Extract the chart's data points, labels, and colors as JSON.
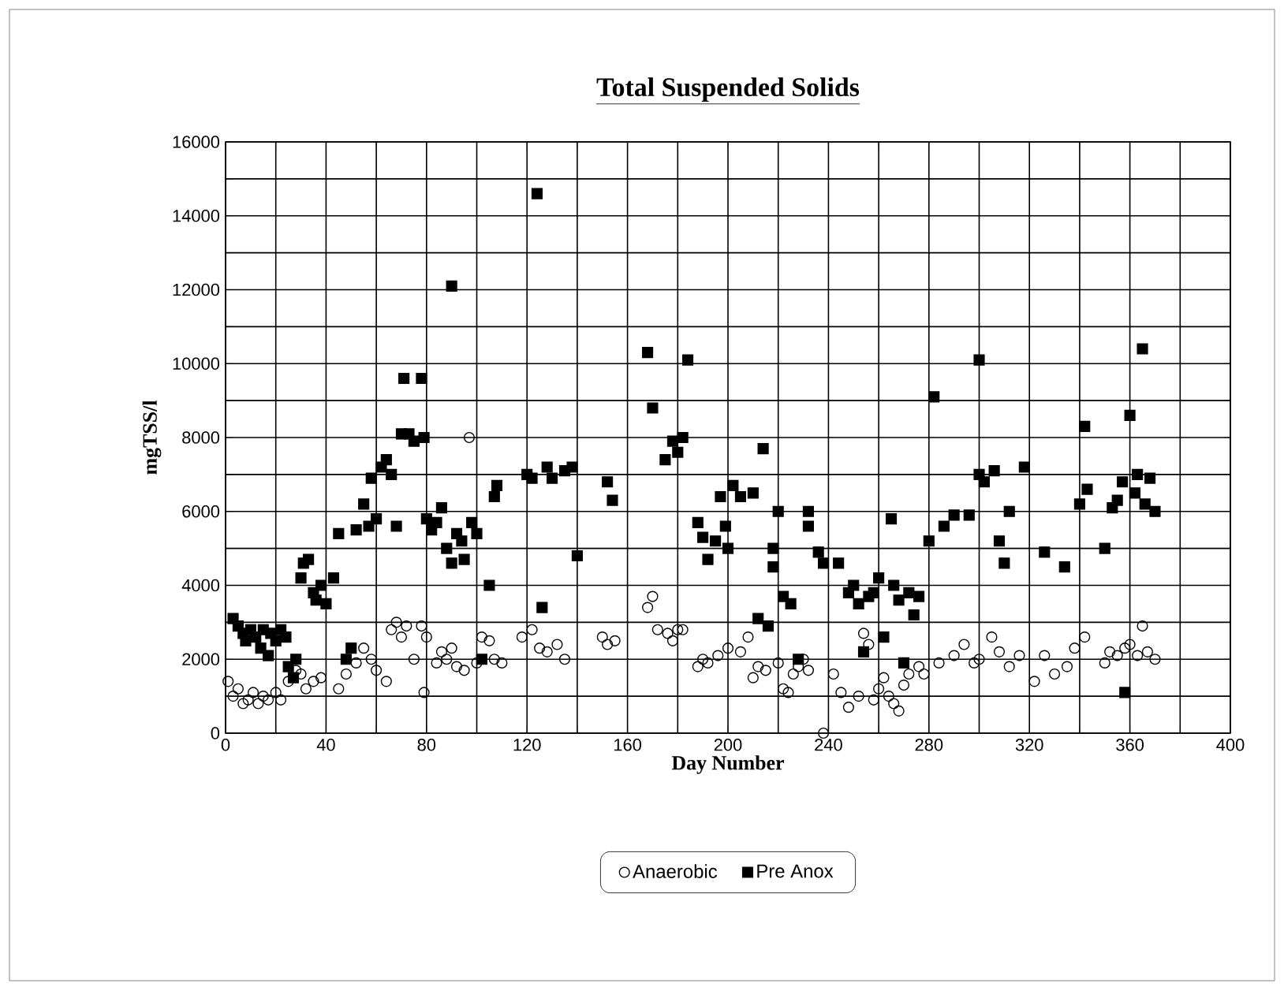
{
  "chart_data": {
    "type": "scatter",
    "title": "Total Suspended Solids",
    "xlabel": "Day Number",
    "ylabel": "mgTSS/l",
    "xlim": [
      0,
      400
    ],
    "ylim": [
      0,
      16000
    ],
    "xticks": [
      0,
      {
        "value": 20,
        "label": null
      },
      40,
      {
        "value": 60,
        "label": null
      },
      80,
      {
        "value": 100,
        "label": null
      },
      120,
      {
        "value": 140,
        "label": null
      },
      160,
      {
        "value": 180,
        "label": null
      },
      200,
      {
        "value": 220,
        "label": null
      },
      240,
      {
        "value": 260,
        "label": null
      },
      280,
      {
        "value": 300,
        "label": null
      },
      320,
      {
        "value": 340,
        "label": null
      },
      360,
      {
        "value": 380,
        "label": null
      },
      400
    ],
    "yticks": [
      0,
      {
        "value": 1000,
        "label": null
      },
      2000,
      {
        "value": 3000,
        "label": null
      },
      4000,
      {
        "value": 5000,
        "label": null
      },
      6000,
      {
        "value": 7000,
        "label": null
      },
      8000,
      {
        "value": 9000,
        "label": null
      },
      10000,
      {
        "value": 11000,
        "label": null
      },
      12000,
      {
        "value": 13000,
        "label": null
      },
      14000,
      {
        "value": 15000,
        "label": null
      },
      16000
    ],
    "grid": true,
    "legend": "bottom",
    "series": [
      {
        "name": "Anaerobic",
        "color": "#000000",
        "marker": "circle",
        "x": [
          1,
          3,
          5,
          7,
          9,
          11,
          13,
          15,
          17,
          20,
          22,
          25,
          28,
          30,
          32,
          35,
          38,
          45,
          48,
          52,
          55,
          58,
          60,
          64,
          66,
          68,
          70,
          72,
          75,
          78,
          79,
          80,
          84,
          86,
          88,
          90,
          92,
          95,
          97,
          100,
          102,
          105,
          107,
          110,
          118,
          122,
          125,
          128,
          132,
          135,
          150,
          152,
          155,
          168,
          170,
          172,
          176,
          178,
          180,
          182,
          188,
          190,
          192,
          196,
          200,
          205,
          208,
          210,
          212,
          215,
          220,
          222,
          224,
          226,
          228,
          230,
          232,
          238,
          242,
          245,
          248,
          252,
          254,
          256,
          258,
          260,
          262,
          264,
          266,
          268,
          270,
          272,
          276,
          278,
          284,
          290,
          294,
          298,
          300,
          305,
          308,
          312,
          316,
          322,
          326,
          330,
          335,
          338,
          342,
          350,
          352,
          355,
          358,
          360,
          363,
          365,
          367,
          370
        ],
        "values": [
          1400,
          1000,
          1200,
          800,
          900,
          1100,
          800,
          1000,
          900,
          1100,
          900,
          1400,
          1700,
          1600,
          1200,
          1400,
          1500,
          1200,
          1600,
          1900,
          2300,
          2000,
          1700,
          1400,
          2800,
          3000,
          2600,
          2900,
          2000,
          2900,
          1100,
          2600,
          1900,
          2200,
          2000,
          2300,
          1800,
          1700,
          8000,
          1900,
          2600,
          2500,
          2000,
          1900,
          2600,
          2800,
          2300,
          2200,
          2400,
          2000,
          2600,
          2400,
          2500,
          3400,
          3700,
          2800,
          2700,
          2500,
          2800,
          2800,
          1800,
          2000,
          1900,
          2100,
          2300,
          2200,
          2600,
          1500,
          1800,
          1700,
          1900,
          1200,
          1100,
          1600,
          1800,
          2000,
          1700,
          0,
          1600,
          1100,
          700,
          1000,
          2700,
          2400,
          900,
          1200,
          1500,
          1000,
          800,
          600,
          1300,
          1600,
          1800,
          1600,
          1900,
          2100,
          2400,
          1900,
          2000,
          2600,
          2200,
          1800,
          2100,
          1400,
          2100,
          1600,
          1800,
          2300,
          2600,
          1900,
          2200,
          2100,
          2300,
          2400,
          2100,
          2900,
          2200,
          2000
        ]
      },
      {
        "name": "Pre Anox",
        "color": "#000000",
        "marker": "square",
        "x": [
          3,
          5,
          7,
          8,
          10,
          12,
          14,
          15,
          17,
          18,
          20,
          22,
          24,
          25,
          27,
          28,
          30,
          31,
          33,
          35,
          36,
          38,
          40,
          43,
          45,
          48,
          50,
          52,
          55,
          57,
          58,
          60,
          62,
          64,
          66,
          68,
          70,
          71,
          73,
          75,
          78,
          79,
          80,
          82,
          84,
          86,
          88,
          90,
          90,
          92,
          94,
          95,
          98,
          100,
          102,
          105,
          107,
          108,
          120,
          122,
          124,
          126,
          128,
          130,
          135,
          138,
          140,
          152,
          154,
          168,
          170,
          175,
          178,
          180,
          182,
          184,
          188,
          190,
          192,
          195,
          197,
          199,
          200,
          202,
          205,
          210,
          212,
          214,
          216,
          218,
          218,
          220,
          222,
          225,
          228,
          232,
          232,
          236,
          238,
          244,
          248,
          250,
          252,
          254,
          256,
          258,
          260,
          262,
          265,
          266,
          268,
          270,
          272,
          274,
          276,
          280,
          282,
          286,
          290,
          296,
          300,
          300,
          302,
          306,
          308,
          310,
          312,
          318,
          326,
          334,
          340,
          342,
          343,
          350,
          353,
          355,
          357,
          358,
          360,
          362,
          363,
          365,
          366,
          368,
          370
        ],
        "values": [
          3100,
          2900,
          2700,
          2500,
          2800,
          2600,
          2300,
          2800,
          2100,
          2700,
          2500,
          2800,
          2600,
          1800,
          1500,
          2000,
          4200,
          4600,
          4700,
          3800,
          3600,
          4000,
          3500,
          4200,
          5400,
          2000,
          2300,
          5500,
          6200,
          5600,
          6900,
          5800,
          7200,
          7400,
          7000,
          5600,
          8100,
          9600,
          8100,
          7900,
          9600,
          8000,
          5800,
          5500,
          5700,
          6100,
          5000,
          4600,
          12100,
          5400,
          5200,
          4700,
          5700,
          5400,
          2000,
          4000,
          6400,
          6700,
          7000,
          6900,
          14600,
          3400,
          7200,
          6900,
          7100,
          7200,
          4800,
          6800,
          6300,
          10300,
          8800,
          7400,
          7900,
          7600,
          8000,
          10100,
          5700,
          5300,
          4700,
          5200,
          6400,
          5600,
          5000,
          6700,
          6400,
          6500,
          3100,
          7700,
          2900,
          4500,
          5000,
          6000,
          3700,
          3500,
          2000,
          5600,
          6000,
          4900,
          4600,
          4600,
          3800,
          4000,
          3500,
          2200,
          3700,
          3800,
          4200,
          2600,
          5800,
          4000,
          3600,
          1900,
          3800,
          3200,
          3700,
          5200,
          9100,
          5600,
          5900,
          5900,
          10100,
          7000,
          6800,
          7100,
          5200,
          4600,
          6000,
          7200,
          4900,
          4500,
          6200,
          8300,
          6600,
          5000,
          6100,
          6300,
          6800,
          1100,
          8600,
          6500,
          7000,
          10400,
          6200,
          6900,
          6000
        ]
      }
    ]
  }
}
